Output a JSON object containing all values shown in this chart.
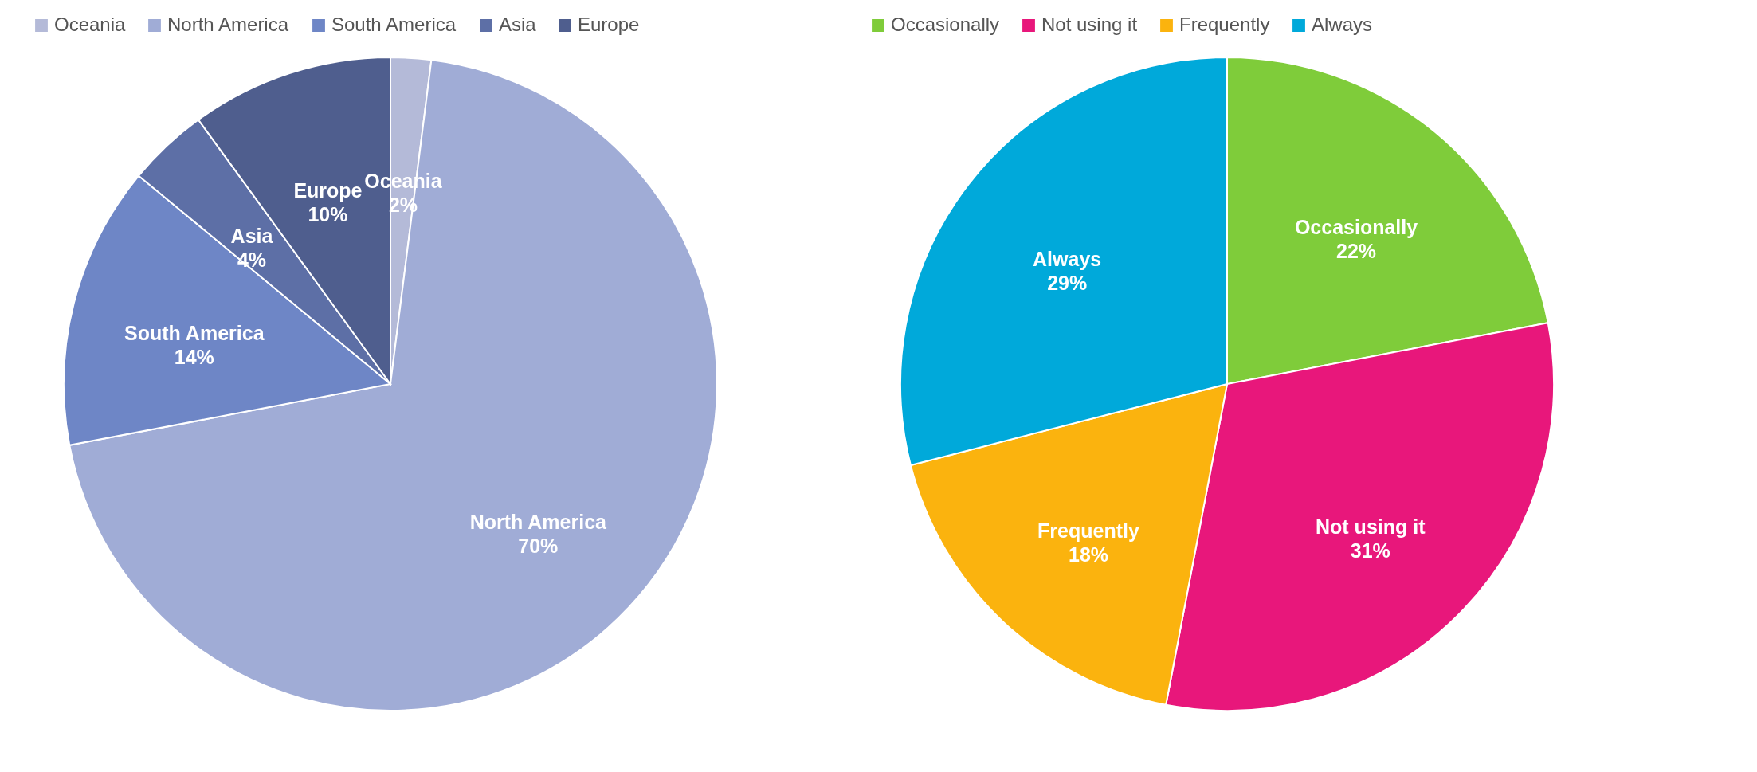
{
  "chart_data": [
    {
      "type": "pie",
      "categories": [
        "Oceania",
        "North America",
        "South America",
        "Asia",
        "Europe"
      ],
      "values": [
        2,
        70,
        14,
        4,
        10
      ],
      "colors": [
        "#b4bad8",
        "#a0acd6",
        "#6e86c6",
        "#5d6fa6",
        "#4f5e8e"
      ],
      "value_labels": [
        "2%",
        "70%",
        "14%",
        "4%",
        "10%"
      ],
      "legend": "top"
    },
    {
      "type": "pie",
      "categories": [
        "Occasionally",
        "Not using it",
        "Frequently",
        "Always"
      ],
      "values": [
        22,
        31,
        18,
        29
      ],
      "colors": [
        "#7fcc3a",
        "#e8177b",
        "#fbb30e",
        "#00a9da"
      ],
      "value_labels": [
        "22%",
        "31%",
        "18%",
        "29%"
      ],
      "legend": "top"
    }
  ]
}
